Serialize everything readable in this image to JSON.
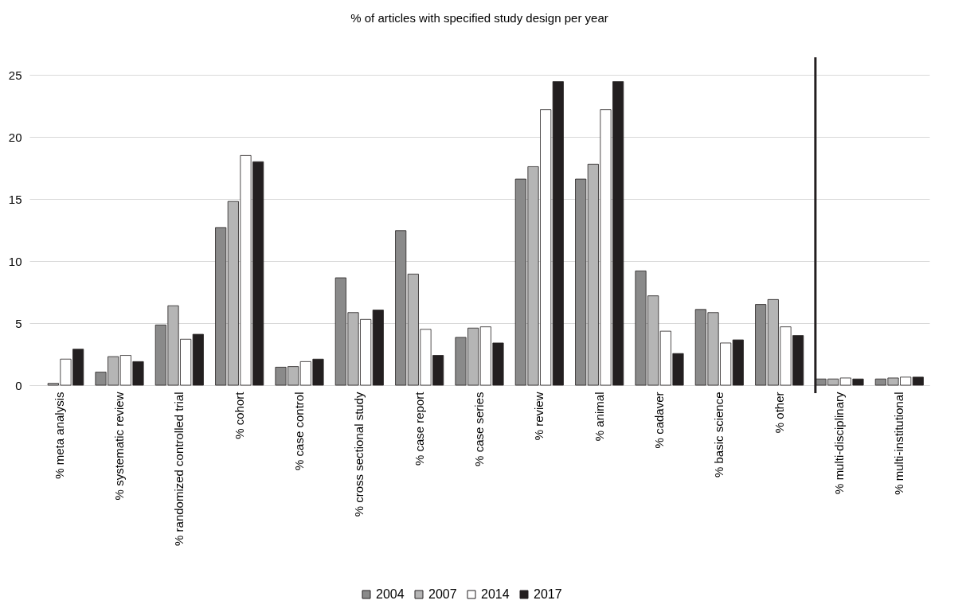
{
  "chart_data": {
    "type": "bar",
    "title": "% of articles with specified study design per year",
    "categories": [
      "% meta analysis",
      "% systematic review",
      "% randomized controlled trial",
      "% cohort",
      "% case control",
      "% cross sectional study",
      "% case report",
      "% case series",
      "% review",
      "% animal",
      "% cadaver",
      "% basic science",
      "% other",
      "% multi-disciplinary",
      "% multi-institutional"
    ],
    "series": [
      {
        "name": "2004",
        "color": "#8a8a8a",
        "values": [
          null,
          1.05,
          4.85,
          12.7,
          1.45,
          8.65,
          12.45,
          3.85,
          16.6,
          16.6,
          9.2,
          6.1,
          6.5,
          0.5,
          0.5
        ]
      },
      {
        "name": "2007",
        "color": "#b5b5b5",
        "values": [
          0.15,
          2.3,
          6.4,
          14.8,
          1.5,
          5.85,
          8.95,
          4.6,
          17.6,
          17.8,
          7.2,
          5.85,
          6.9,
          0.5,
          0.58
        ]
      },
      {
        "name": "2014",
        "color": "#ffffff",
        "values": [
          2.1,
          2.4,
          3.7,
          18.5,
          1.9,
          5.3,
          4.5,
          4.7,
          22.2,
          22.2,
          4.35,
          3.4,
          4.7,
          0.58,
          0.65
        ]
      },
      {
        "name": "2017",
        "color": "#231f20",
        "values": [
          2.9,
          1.9,
          4.1,
          18.0,
          2.1,
          6.05,
          2.4,
          3.4,
          24.45,
          24.45,
          2.55,
          3.65,
          4.0,
          0.5,
          0.65
        ]
      }
    ],
    "ylim": [
      0,
      25
    ],
    "yticks": [
      0,
      5,
      10,
      15,
      20,
      25
    ],
    "grid": "y",
    "legend": "bottom",
    "ref_lines": [
      {
        "axis": "x",
        "value": "% multi-disciplinary",
        "color": "#231f20"
      }
    ]
  }
}
